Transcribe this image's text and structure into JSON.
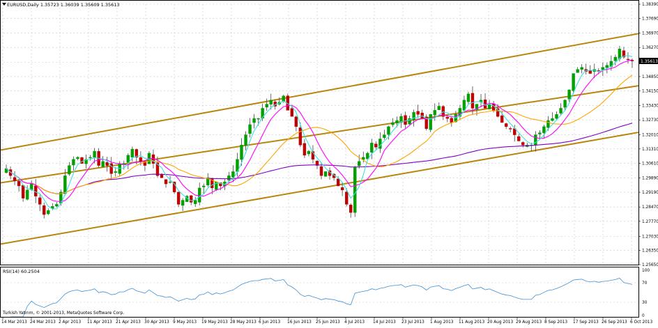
{
  "window": {
    "header_text": "EURUSD,Daily  1.35723 1.36039 1.35609 1.35613",
    "copyright": "Turkish Yatırım, © 2001-2013, MetaQuotes Software Corp.",
    "current_price_label": "1.35613"
  },
  "rsi": {
    "label": "RSI(14) 60.2504",
    "levels": [
      "70",
      "30"
    ],
    "scale_top": "100",
    "scale_bottom": "0"
  },
  "colors": {
    "bull_candle": "#00a000",
    "bear_candle": "#c00000",
    "ma_fast": "#40e0e0",
    "ma_mid": "#ff00ff",
    "ma_slow": "#ffa500",
    "ma_long": "#8000c0",
    "channel": "#b8860b",
    "rsi_line": "#3a8fd8",
    "grid": "#c8c8c8"
  },
  "chart_data": {
    "type": "candlestick",
    "symbol": "EURUSD",
    "timeframe": "Daily",
    "y_axis_ticks": [
      "1.38390",
      "1.37690",
      "1.36970",
      "1.36270",
      "1.35550",
      "1.34850",
      "1.34150",
      "1.33430",
      "1.32730",
      "1.32010",
      "1.31310",
      "1.30610",
      "1.29890",
      "1.29190",
      "1.28470",
      "1.27770",
      "1.27030",
      "1.26350",
      "1.25650"
    ],
    "ylim": [
      1.2565,
      1.3839
    ],
    "x_axis_labels": [
      "14 Mar 2013",
      "24 Mar 2013",
      "2 Apr 2013",
      "11 Apr 2013",
      "21 Apr 2013",
      "30 Apr 2013",
      "9 May 2013",
      "19 May 2013",
      "28 May 2013",
      "6 Jun 2013",
      "16 Jun 2013",
      "25 Jun 2013",
      "4 Jul 2013",
      "14 Jul 2013",
      "23 Jul 2013",
      "1 Aug 2013",
      "11 Aug 2013",
      "20 Aug 2013",
      "29 Aug 2013",
      "8 Sep 2013",
      "17 Sep 2013",
      "26 Sep 2013",
      "6 Oct 2013"
    ],
    "closes": [
      1.3035,
      1.3,
      1.2975,
      1.295,
      1.289,
      1.293,
      1.296,
      1.29,
      1.286,
      1.281,
      1.283,
      1.285,
      1.286,
      1.292,
      1.3,
      1.305,
      1.308,
      1.309,
      1.306,
      1.308,
      1.309,
      1.312,
      1.305,
      1.307,
      1.305,
      1.301,
      1.302,
      1.306,
      1.306,
      1.31,
      1.313,
      1.309,
      1.307,
      1.305,
      1.311,
      1.306,
      1.3,
      1.299,
      1.296,
      1.297,
      1.292,
      1.286,
      1.288,
      1.29,
      1.287,
      1.288,
      1.294,
      1.295,
      1.299,
      1.294,
      1.297,
      1.295,
      1.297,
      1.3,
      1.302,
      1.308,
      1.315,
      1.32,
      1.325,
      1.328,
      1.328,
      1.333,
      1.335,
      1.337,
      1.334,
      1.336,
      1.339,
      1.332,
      1.329,
      1.324,
      1.315,
      1.31,
      1.312,
      1.308,
      1.305,
      1.3,
      1.302,
      1.3,
      1.299,
      1.295,
      1.293,
      1.286,
      1.282,
      1.304,
      1.307,
      1.309,
      1.311,
      1.316,
      1.314,
      1.318,
      1.32,
      1.324,
      1.326,
      1.327,
      1.329,
      1.325,
      1.328,
      1.331,
      1.33,
      1.328,
      1.323,
      1.33,
      1.332,
      1.334,
      1.329,
      1.328,
      1.326,
      1.33,
      1.333,
      1.337,
      1.34,
      1.333,
      1.335,
      1.337,
      1.333,
      1.335,
      1.332,
      1.329,
      1.326,
      1.324,
      1.323,
      1.32,
      1.317,
      1.315,
      1.315,
      1.315,
      1.32,
      1.321,
      1.324,
      1.327,
      1.328,
      1.33,
      1.333,
      1.337,
      1.342,
      1.35,
      1.352,
      1.353,
      1.351,
      1.35,
      1.352,
      1.351,
      1.353,
      1.354,
      1.356,
      1.358,
      1.362,
      1.358,
      1.357,
      1.3561
    ],
    "ma_periods": [
      "fast",
      "mid",
      "slow",
      "long"
    ],
    "rsi_current": 60.2504,
    "rsi_levels": [
      70,
      30
    ]
  }
}
